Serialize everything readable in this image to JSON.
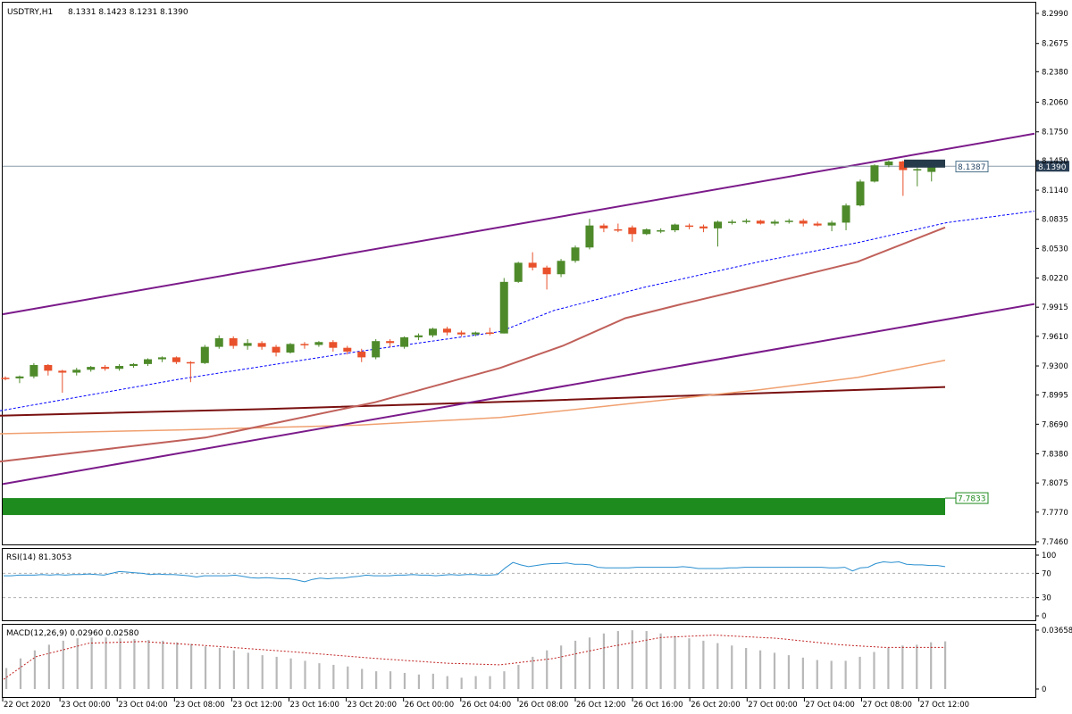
{
  "main_panel": {
    "symbol_label": "USDTRY,H1",
    "ohlc_text": "8.1331 8.1423 8.1231 8.1390",
    "y_ticks": [
      "8.2990",
      "8.2675",
      "8.2380",
      "8.2060",
      "8.1750",
      "8.1450",
      "8.1140",
      "8.0835",
      "8.0530",
      "8.0220",
      "7.9915",
      "7.9610",
      "7.9300",
      "7.8995",
      "7.8690",
      "7.8380",
      "7.8075",
      "7.7770",
      "7.7460"
    ],
    "price_label": "8.1390",
    "channel_label": "8.1387",
    "zone_label": "7.7833"
  },
  "rsi_panel": {
    "label": "RSI(14) 81.3053",
    "y_ticks": [
      "100",
      "70",
      "30",
      "0"
    ]
  },
  "macd_panel": {
    "label": "MACD(12,26,9) 0.02960 0.02580",
    "y_ticks": [
      "0.03658",
      "0"
    ]
  },
  "x_labels": [
    "22 Oct 2020",
    "23 Oct 00:00",
    "23 Oct 04:00",
    "23 Oct 08:00",
    "23 Oct 12:00",
    "23 Oct 16:00",
    "23 Oct 20:00",
    "26 Oct 00:00",
    "26 Oct 04:00",
    "26 Oct 08:00",
    "26 Oct 12:00",
    "26 Oct 16:00",
    "26 Oct 20:00",
    "27 Oct 00:00",
    "27 Oct 04:00",
    "27 Oct 08:00",
    "27 Oct 12:00"
  ],
  "colors": {
    "bull": "#4e8a2a",
    "bear": "#e8512b",
    "channel": "#7b1a8a",
    "ma_fast": "#0000ff",
    "ma_mid": "#c0605a",
    "ma_slow": "#f0a070",
    "ma_long": "#7a1010",
    "zone": "#1e8b1e",
    "rsi": "#2a8fd0",
    "macd_signal": "#c02020"
  },
  "chart_data": {
    "type": "candlestick",
    "symbol": "USDTRY",
    "timeframe": "H1",
    "ylim": [
      7.746,
      8.299
    ],
    "candles": [
      [
        7.9176,
        7.919,
        7.915,
        7.917
      ],
      [
        7.917,
        7.92,
        7.912,
        7.919
      ],
      [
        7.919,
        7.933,
        7.917,
        7.931
      ],
      [
        7.931,
        7.932,
        7.92,
        7.925
      ],
      [
        7.925,
        7.926,
        7.902,
        7.923
      ],
      [
        7.923,
        7.928,
        7.92,
        7.926
      ],
      [
        7.926,
        7.93,
        7.924,
        7.929
      ],
      [
        7.929,
        7.931,
        7.925,
        7.927
      ],
      [
        7.927,
        7.932,
        7.925,
        7.93
      ],
      [
        7.93,
        7.933,
        7.928,
        7.932
      ],
      [
        7.932,
        7.938,
        7.93,
        7.937
      ],
      [
        7.937,
        7.94,
        7.934,
        7.939
      ],
      [
        7.939,
        7.94,
        7.932,
        7.934
      ],
      [
        7.934,
        7.935,
        7.913,
        7.933
      ],
      [
        7.933,
        7.952,
        7.932,
        7.95
      ],
      [
        7.95,
        7.962,
        7.948,
        7.959
      ],
      [
        7.959,
        7.961,
        7.948,
        7.951
      ],
      [
        7.951,
        7.958,
        7.947,
        7.954
      ],
      [
        7.954,
        7.956,
        7.947,
        7.95
      ],
      [
        7.95,
        7.952,
        7.94,
        7.944
      ],
      [
        7.944,
        7.954,
        7.943,
        7.953
      ],
      [
        7.953,
        7.955,
        7.948,
        7.952
      ],
      [
        7.952,
        7.956,
        7.95,
        7.955
      ],
      [
        7.955,
        7.957,
        7.945,
        7.949
      ],
      [
        7.949,
        7.951,
        7.942,
        7.945
      ],
      [
        7.945,
        7.948,
        7.934,
        7.939
      ],
      [
        7.939,
        7.958,
        7.937,
        7.956
      ],
      [
        7.956,
        7.958,
        7.95,
        7.954
      ],
      [
        7.95,
        7.961,
        7.948,
        7.96
      ],
      [
        7.96,
        7.964,
        7.957,
        7.962
      ],
      [
        7.962,
        7.97,
        7.96,
        7.969
      ],
      [
        7.969,
        7.971,
        7.962,
        7.965
      ],
      [
        7.965,
        7.967,
        7.961,
        7.963
      ],
      [
        7.963,
        7.966,
        7.961,
        7.965
      ],
      [
        7.965,
        7.97,
        7.962,
        7.964
      ],
      [
        7.964,
        8.022,
        7.964,
        8.018
      ],
      [
        8.018,
        8.039,
        8.017,
        8.038
      ],
      [
        8.038,
        8.049,
        8.03,
        8.033
      ],
      [
        8.033,
        8.035,
        8.01,
        8.026
      ],
      [
        8.026,
        8.042,
        8.023,
        8.04
      ],
      [
        8.04,
        8.056,
        8.038,
        8.054
      ],
      [
        8.054,
        8.084,
        8.052,
        8.077
      ],
      [
        8.077,
        8.079,
        8.07,
        8.074
      ],
      [
        8.073,
        8.079,
        8.07,
        8.072
      ],
      [
        8.075,
        8.077,
        8.06,
        8.068
      ],
      [
        8.068,
        8.074,
        8.067,
        8.073
      ],
      [
        8.071,
        8.074,
        8.069,
        8.072
      ],
      [
        8.072,
        8.079,
        8.07,
        8.078
      ],
      [
        8.077,
        8.079,
        8.073,
        8.076
      ],
      [
        8.076,
        8.078,
        8.07,
        8.074
      ],
      [
        8.074,
        8.082,
        8.055,
        8.081
      ],
      [
        8.08,
        8.083,
        8.078,
        8.081
      ],
      [
        8.081,
        8.084,
        8.079,
        8.082
      ],
      [
        8.082,
        8.083,
        8.078,
        8.079
      ],
      [
        8.079,
        8.083,
        8.077,
        8.081
      ],
      [
        8.081,
        8.084,
        8.079,
        8.082
      ],
      [
        8.082,
        8.084,
        8.076,
        8.079
      ],
      [
        8.079,
        8.081,
        8.076,
        8.077
      ],
      [
        8.077,
        8.082,
        8.071,
        8.08
      ],
      [
        8.08,
        8.1,
        8.072,
        8.098
      ],
      [
        8.098,
        8.125,
        8.097,
        8.123
      ],
      [
        8.123,
        8.141,
        8.122,
        8.14
      ],
      [
        8.14,
        8.145,
        8.138,
        8.144
      ],
      [
        8.144,
        8.145,
        8.108,
        8.135
      ],
      [
        8.135,
        8.138,
        8.118,
        8.136
      ],
      [
        8.1331,
        8.1423,
        8.1231,
        8.139
      ]
    ]
  }
}
